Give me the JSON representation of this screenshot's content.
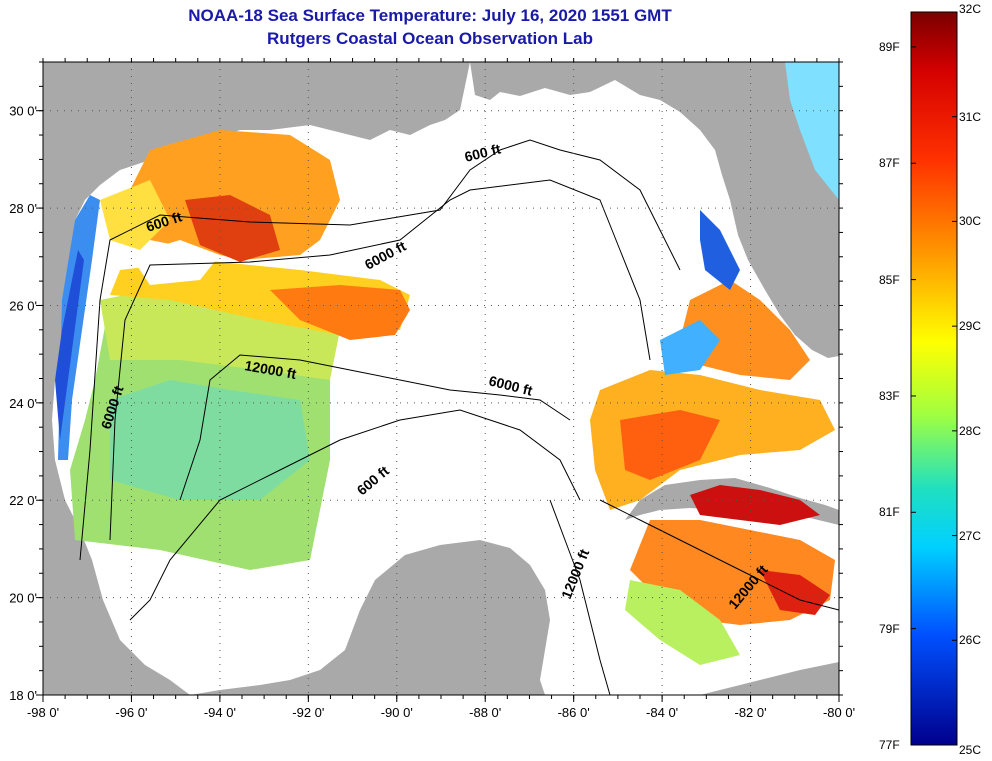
{
  "title": {
    "line1": "NOAA-18 Sea Surface Temperature:  July 16, 2020 1551 GMT",
    "line2": "Rutgers Coastal Ocean Observation Lab"
  },
  "map": {
    "lon_range": [
      -98,
      -80
    ],
    "lat_range": [
      18,
      31
    ],
    "lon_ticks": [
      "-98 0'",
      "-96 0'",
      "-94 0'",
      "-92 0'",
      "-90 0'",
      "-88 0'",
      "-86 0'",
      "-84 0'",
      "-82 0'",
      "-80 0'"
    ],
    "lat_ticks": [
      "18 0'",
      "20 0'",
      "22 0'",
      "24 0'",
      "26 0'",
      "28 0'",
      "30 0'"
    ],
    "contour_labels": [
      "600 ft",
      "600 ft",
      "6000 ft",
      "12000 ft",
      "6000 ft",
      "6000 ft",
      "600 ft",
      "12000 ft",
      "12000 ft"
    ],
    "colors": {
      "land": "#a9a9a9",
      "no_data": "#ffffff",
      "contour": "#000000"
    }
  },
  "colorbar": {
    "range_c": [
      25,
      32
    ],
    "celsius_labels": [
      "32C",
      "31C",
      "30C",
      "29C",
      "28C",
      "27C",
      "26C",
      "25C"
    ],
    "fahrenheit_labels": [
      "89F",
      "87F",
      "85F",
      "83F",
      "81F",
      "79F",
      "77F"
    ]
  }
}
